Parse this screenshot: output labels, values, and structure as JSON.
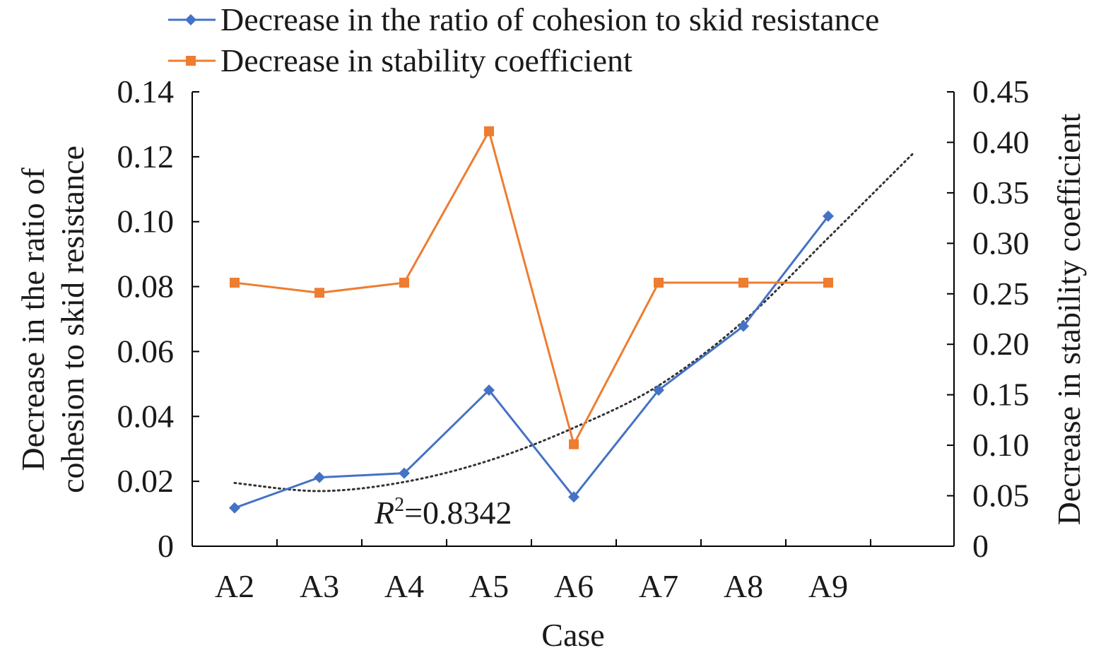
{
  "chart_data": {
    "type": "line",
    "xlabel": "Case",
    "categories": [
      "A2",
      "A3",
      "A4",
      "A5",
      "A6",
      "A7",
      "A8",
      "A9"
    ],
    "y_left": {
      "label_lines": [
        "Decrease in the ratio of",
        "cohesion to skid resistance"
      ],
      "range": [
        0,
        0.14
      ],
      "ticks": [
        "0",
        "0.02",
        "0.04",
        "0.06",
        "0.08",
        "0.10",
        "0.12",
        "0.14"
      ]
    },
    "y_right": {
      "label": "Decrease in stability coefficient",
      "range": [
        0,
        0.45
      ],
      "ticks": [
        "0",
        "0.05",
        "0.10",
        "0.15",
        "0.20",
        "0.25",
        "0.30",
        "0.35",
        "0.40",
        "0.45"
      ]
    },
    "series": [
      {
        "name": "Decrease in the ratio of cohesion to skid resistance",
        "axis": "left",
        "color": "#4472c4",
        "marker": "diamond",
        "values": [
          0.0118,
          0.0212,
          0.0225,
          0.0481,
          0.0152,
          0.0481,
          0.0678,
          0.1017
        ]
      },
      {
        "name": "Decrease in stability coefficient",
        "axis": "right",
        "color": "#ed7d31",
        "marker": "square",
        "values": [
          0.261,
          0.251,
          0.261,
          0.411,
          0.101,
          0.261,
          0.261,
          0.261
        ]
      }
    ],
    "trendline": {
      "series": "Decrease in the ratio of cohesion to skid resistance",
      "kind": "polynomial",
      "x": [
        0,
        1,
        2,
        3,
        4,
        5,
        6,
        7,
        8
      ],
      "values": [
        0.0195,
        0.017,
        0.0198,
        0.0264,
        0.0365,
        0.0495,
        0.0693,
        0.095,
        0.121
      ],
      "color": "#333333",
      "r2_prefix": "R",
      "r2_sup": "2",
      "r2_value": "=0.8342"
    },
    "legend_position": "top-left",
    "grid": false
  }
}
